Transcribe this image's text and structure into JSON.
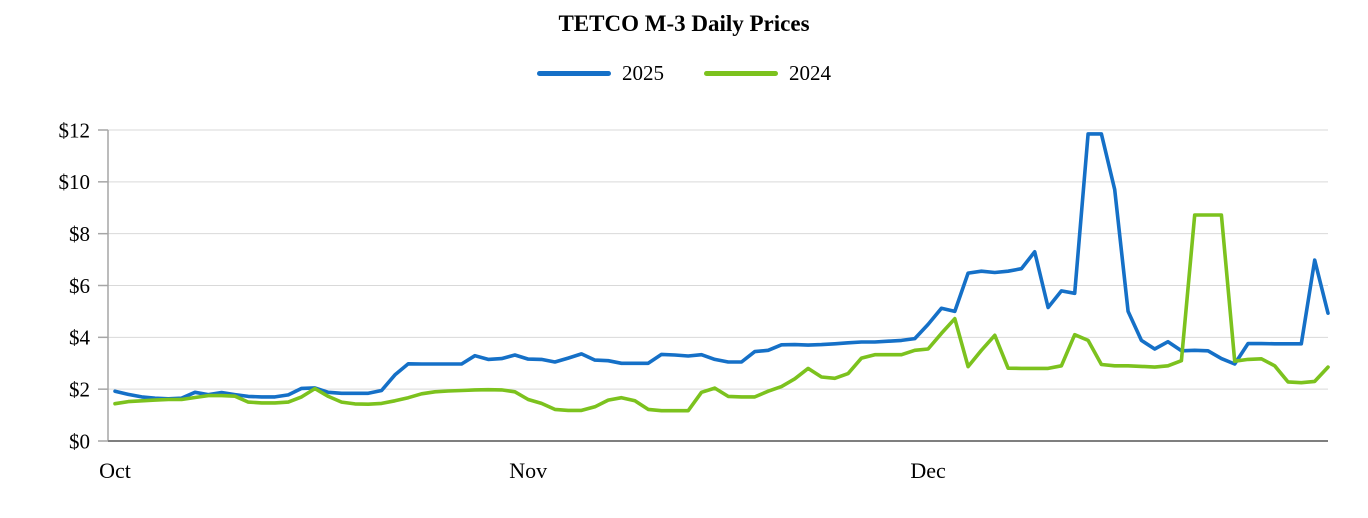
{
  "page": {
    "background": "#ffffff"
  },
  "chart_data": {
    "type": "line",
    "title": "TETCO M-3 Daily Prices",
    "legend_position": "top",
    "grid": true,
    "x_axis": {
      "labels": [
        "Oct",
        "Nov",
        "Dec"
      ],
      "label_days": [
        0,
        31,
        61
      ],
      "n_points": 92
    },
    "y_axis": {
      "prefix": "$",
      "ticks": [
        0,
        2,
        4,
        6,
        8,
        10,
        12
      ],
      "range": [
        0,
        12
      ]
    },
    "series": [
      {
        "name": "2025",
        "color": "#1570C7",
        "values": [
          1.92,
          1.8,
          1.7,
          1.65,
          1.63,
          1.65,
          1.88,
          1.79,
          1.87,
          1.79,
          1.72,
          1.7,
          1.7,
          1.78,
          2.03,
          2.05,
          1.88,
          1.84,
          1.84,
          1.84,
          1.95,
          2.55,
          2.98,
          2.97,
          2.97,
          2.97,
          2.97,
          3.29,
          3.15,
          3.18,
          3.32,
          3.16,
          3.15,
          3.05,
          3.2,
          3.36,
          3.12,
          3.1,
          3.0,
          3.0,
          3.0,
          3.34,
          3.32,
          3.28,
          3.33,
          3.15,
          3.05,
          3.05,
          3.45,
          3.5,
          3.71,
          3.72,
          3.7,
          3.72,
          3.75,
          3.79,
          3.82,
          3.82,
          3.85,
          3.88,
          3.95,
          4.5,
          5.12,
          5.0,
          6.48,
          6.55,
          6.5,
          6.55,
          6.65,
          7.3,
          5.15,
          5.79,
          5.7,
          11.85,
          11.85,
          9.7,
          5.0,
          3.88,
          3.55,
          3.83,
          3.48,
          3.5,
          3.48,
          3.18,
          2.97,
          3.76,
          3.76,
          3.75,
          3.75,
          3.75,
          6.98,
          4.93
        ]
      },
      {
        "name": "2024",
        "color": "#7CC21E",
        "values": [
          1.44,
          1.52,
          1.55,
          1.58,
          1.6,
          1.6,
          1.68,
          1.75,
          1.75,
          1.73,
          1.5,
          1.47,
          1.47,
          1.5,
          1.7,
          2.02,
          1.72,
          1.5,
          1.43,
          1.42,
          1.45,
          1.55,
          1.67,
          1.82,
          1.9,
          1.93,
          1.95,
          1.97,
          1.98,
          1.97,
          1.9,
          1.6,
          1.45,
          1.22,
          1.18,
          1.18,
          1.32,
          1.58,
          1.67,
          1.55,
          1.22,
          1.17,
          1.17,
          1.17,
          1.88,
          2.04,
          1.72,
          1.7,
          1.7,
          1.92,
          2.1,
          2.4,
          2.8,
          2.47,
          2.42,
          2.6,
          3.2,
          3.33,
          3.33,
          3.33,
          3.5,
          3.55,
          4.15,
          4.72,
          2.87,
          3.5,
          4.08,
          2.81,
          2.8,
          2.8,
          2.8,
          2.9,
          4.1,
          3.88,
          2.95,
          2.9,
          2.9,
          2.88,
          2.85,
          2.9,
          3.1,
          8.72,
          8.72,
          8.72,
          3.08,
          3.15,
          3.17,
          2.9,
          2.28,
          2.25,
          2.3,
          2.85
        ]
      }
    ],
    "colors": {
      "gridline": "#D9D9D9",
      "y_axis_line": "#A6A6A6",
      "x_axis_line": "#7F7F7F",
      "tick": "#A6A6A6",
      "text": "#000000"
    }
  }
}
